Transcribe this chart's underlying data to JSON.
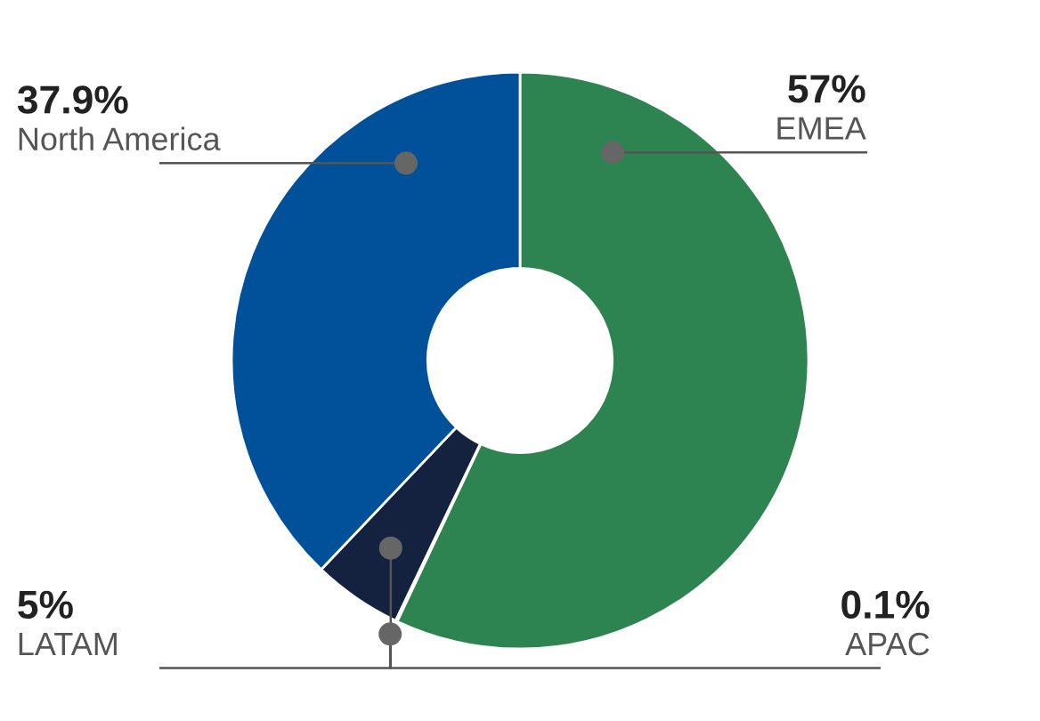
{
  "chart_data": {
    "type": "donut",
    "categories": [
      "EMEA",
      "APAC",
      "LATAM",
      "North America"
    ],
    "values": [
      57,
      0.1,
      5,
      37.9
    ],
    "value_labels": [
      "57%",
      "0.1%",
      "5%",
      "37.9%"
    ],
    "colors": [
      "#2e8450",
      "#c9d4e2",
      "#14223f",
      "#00509a"
    ]
  }
}
